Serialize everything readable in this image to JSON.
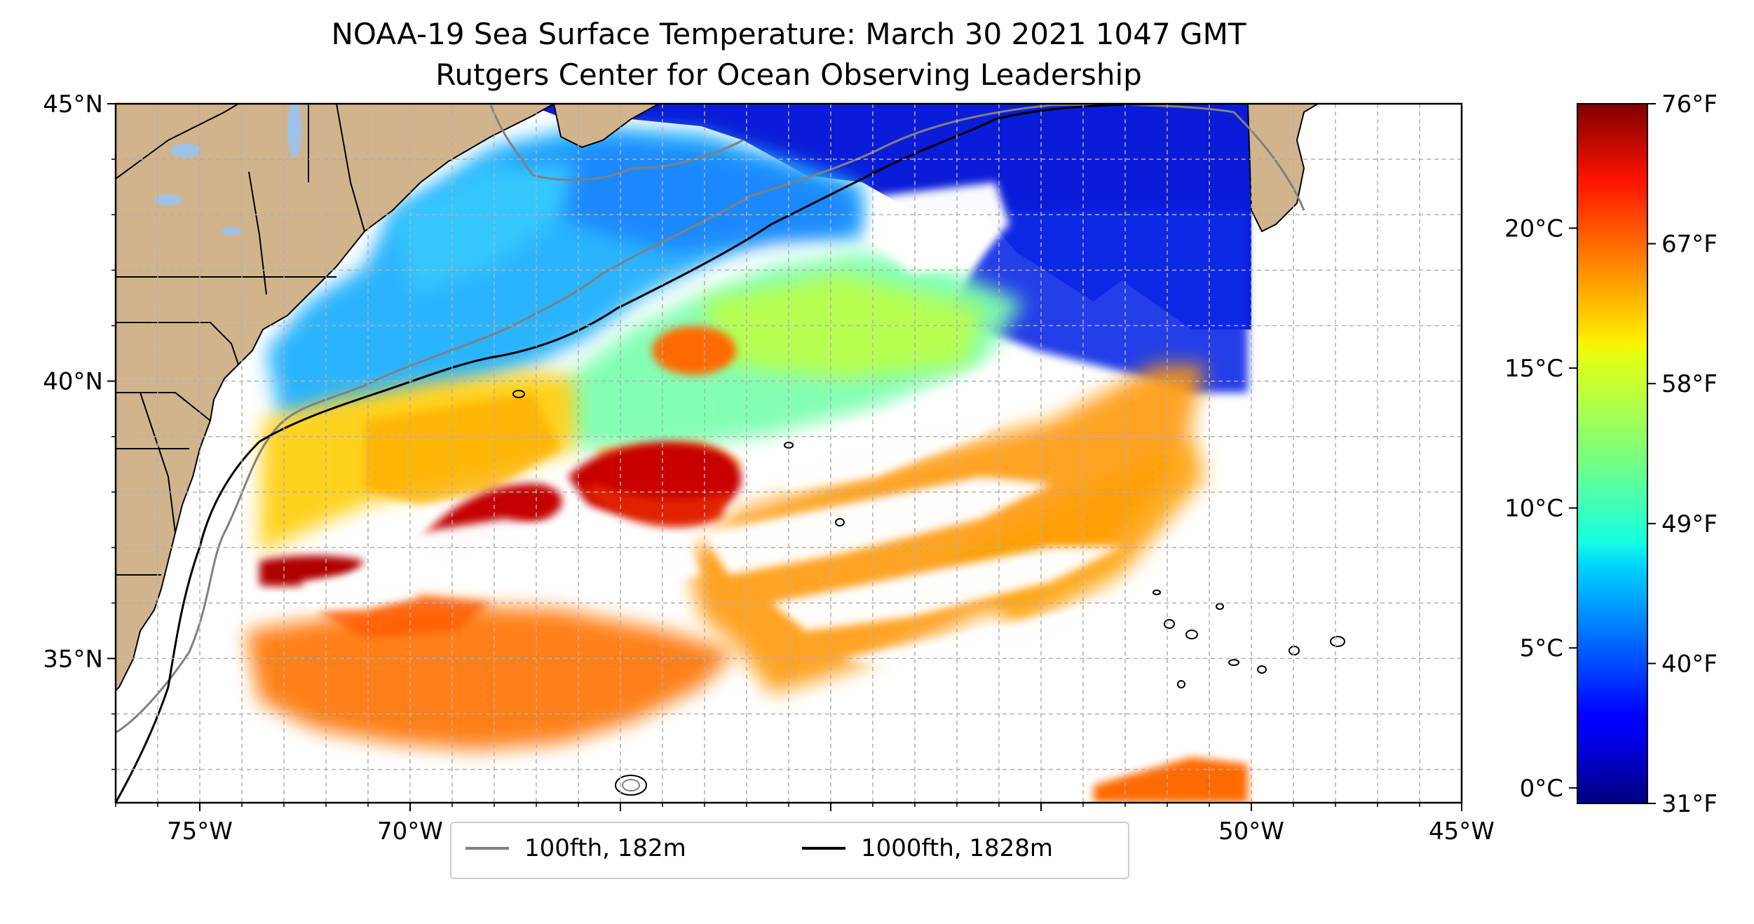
{
  "title": {
    "line1": "NOAA-19 Sea Surface Temperature: March 30 2021 1047 GMT",
    "line2": "Rutgers Center for Ocean Observing Leadership"
  },
  "map": {
    "lon_range": [
      -77,
      -45
    ],
    "lat_range": [
      32.4,
      45
    ],
    "x_ticks": [
      "75°W",
      "70°W",
      "65°W",
      "60°W",
      "55°W",
      "50°W",
      "45°W"
    ],
    "y_ticks": [
      "35°N",
      "40°N",
      "45°N"
    ],
    "gridlines": true,
    "land_color": "#d2b48c",
    "lake_color": "#9ec2e6"
  },
  "legend": {
    "items": [
      {
        "label": "100fth, 182m",
        "color": "#808080"
      },
      {
        "label": "1000fth, 1828m",
        "color": "#000000"
      }
    ],
    "placement": "bottom-center"
  },
  "colorbar": {
    "colormap": "jet",
    "celsius_ticks": [
      "0°C",
      "5°C",
      "10°C",
      "15°C",
      "20°C"
    ],
    "fahrenheit_ticks": [
      "31°F",
      "40°F",
      "49°F",
      "58°F",
      "67°F",
      "76°F"
    ],
    "range_f": [
      31,
      76
    ]
  },
  "chart_data": {
    "type": "heatmap",
    "title": "NOAA-19 Sea Surface Temperature: March 30 2021 1047 GMT",
    "subtitle": "Rutgers Center for Ocean Observing Leadership",
    "xlabel": "",
    "ylabel": "",
    "x_ticks": [
      "75°W",
      "70°W",
      "65°W",
      "60°W",
      "55°W",
      "50°W",
      "45°W"
    ],
    "y_ticks": [
      "35°N",
      "40°N",
      "45°N"
    ],
    "xlim": [
      -77,
      -45
    ],
    "ylim": [
      32.4,
      45
    ],
    "colorbar_ticks_f": [
      31,
      40,
      49,
      58,
      67,
      76
    ],
    "colorbar_ticks_c": [
      0,
      5,
      10,
      15,
      20
    ],
    "series": [
      {
        "name": "100fth, 182m",
        "color": "#808080"
      },
      {
        "name": "1000fth, 1828m",
        "color": "#000000"
      }
    ],
    "grid": true,
    "legend_placement": "bottom-center"
  }
}
